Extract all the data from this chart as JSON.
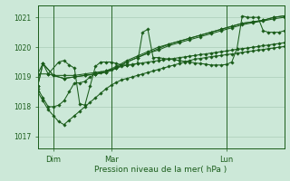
{
  "title": "",
  "xlabel": "Pression niveau de la mer( hPa )",
  "bg_color": "#cce8d8",
  "grid_color": "#aaccb8",
  "line_color": "#1a5c1a",
  "ylim": [
    1016.6,
    1021.4
  ],
  "xlim": [
    0,
    47
  ],
  "yticks": [
    1017,
    1018,
    1019,
    1020,
    1021
  ],
  "xtick_positions": [
    3,
    14,
    36
  ],
  "xtick_labels": [
    "Dim",
    "Mar",
    "Lun"
  ],
  "day_vlines": [
    3,
    14,
    36
  ],
  "series": [
    {
      "x": [
        0,
        1,
        2,
        3,
        5,
        7,
        9,
        11,
        13,
        15,
        17,
        19,
        21,
        23,
        25,
        27,
        29,
        31,
        33,
        35,
        37,
        39,
        41,
        43,
        45,
        47
      ],
      "y": [
        1019.1,
        1019.45,
        1019.1,
        1019.05,
        1019.05,
        1019.05,
        1019.1,
        1019.15,
        1019.2,
        1019.35,
        1019.55,
        1019.7,
        1019.85,
        1020.0,
        1020.1,
        1020.2,
        1020.3,
        1020.4,
        1020.5,
        1020.6,
        1020.7,
        1020.8,
        1020.85,
        1020.9,
        1021.0,
        1021.05
      ]
    },
    {
      "x": [
        0,
        1,
        3,
        5,
        7,
        9,
        11,
        13,
        15,
        17,
        19,
        21,
        23,
        25,
        27,
        29,
        31,
        33,
        35,
        37,
        39,
        41,
        43,
        45,
        47
      ],
      "y": [
        1018.7,
        1019.45,
        1019.05,
        1018.95,
        1019.0,
        1019.05,
        1019.1,
        1019.15,
        1019.3,
        1019.5,
        1019.65,
        1019.8,
        1019.95,
        1020.1,
        1020.2,
        1020.3,
        1020.4,
        1020.5,
        1020.6,
        1020.7,
        1020.8,
        1020.85,
        1020.9,
        1021.0,
        1021.05
      ]
    },
    {
      "x": [
        0,
        1,
        3,
        5,
        7,
        9,
        11,
        13,
        15,
        17,
        19,
        21,
        23,
        25,
        27,
        29,
        31,
        33,
        35,
        37,
        39,
        41,
        43,
        45,
        47
      ],
      "y": [
        1018.7,
        1019.45,
        1019.05,
        1018.95,
        1019.0,
        1019.05,
        1019.1,
        1019.15,
        1019.3,
        1019.5,
        1019.65,
        1019.8,
        1019.9,
        1020.05,
        1020.15,
        1020.25,
        1020.35,
        1020.45,
        1020.55,
        1020.65,
        1020.75,
        1020.82,
        1020.88,
        1020.95,
        1021.0
      ]
    },
    {
      "x": [
        0,
        1,
        2,
        3,
        4,
        5,
        6,
        7,
        8,
        9,
        10,
        11,
        12,
        13,
        14,
        15,
        16,
        17,
        18,
        19,
        20,
        21,
        22,
        23,
        24,
        25,
        26,
        27,
        28,
        29,
        30,
        31,
        32,
        33,
        34,
        35,
        36,
        37,
        38,
        39,
        40,
        41,
        42,
        43,
        44,
        45,
        46,
        47
      ],
      "y": [
        1018.6,
        1018.3,
        1018.0,
        1018.0,
        1018.05,
        1018.2,
        1018.5,
        1018.8,
        1018.8,
        1018.85,
        1019.0,
        1019.1,
        1019.15,
        1019.2,
        1019.25,
        1019.3,
        1019.35,
        1019.4,
        1019.42,
        1019.45,
        1019.47,
        1019.5,
        1019.52,
        1019.55,
        1019.57,
        1019.6,
        1019.62,
        1019.65,
        1019.67,
        1019.7,
        1019.72,
        1019.75,
        1019.77,
        1019.8,
        1019.82,
        1019.85,
        1019.87,
        1019.9,
        1019.93,
        1019.95,
        1019.97,
        1020.0,
        1020.02,
        1020.05,
        1020.07,
        1020.1,
        1020.12,
        1020.15
      ]
    },
    {
      "x": [
        0,
        2,
        4,
        5,
        6,
        7,
        8,
        9,
        10,
        11,
        12,
        13,
        14,
        15,
        16,
        17,
        18,
        19,
        20,
        21,
        22,
        23,
        24,
        25,
        26,
        27,
        28,
        29,
        30,
        31,
        32,
        33,
        34,
        35,
        36,
        37,
        38,
        39,
        40,
        41,
        42,
        43,
        44,
        45,
        46,
        47
      ],
      "y": [
        1019.1,
        1019.1,
        1019.5,
        1019.55,
        1019.4,
        1019.3,
        1018.1,
        1018.05,
        1018.7,
        1019.35,
        1019.5,
        1019.5,
        1019.5,
        1019.45,
        1019.4,
        1019.4,
        1019.4,
        1019.45,
        1020.5,
        1020.6,
        1019.65,
        1019.65,
        1019.62,
        1019.6,
        1019.58,
        1019.55,
        1019.52,
        1019.5,
        1019.47,
        1019.45,
        1019.43,
        1019.4,
        1019.4,
        1019.4,
        1019.42,
        1019.5,
        1019.95,
        1021.05,
        1021.0,
        1021.0,
        1021.0,
        1020.55,
        1020.5,
        1020.5,
        1020.5,
        1020.55
      ]
    },
    {
      "x": [
        0,
        1,
        2,
        3,
        4,
        5,
        6,
        7,
        8,
        9,
        10,
        11,
        12,
        13,
        14,
        15,
        16,
        17,
        18,
        19,
        20,
        21,
        22,
        23,
        24,
        25,
        26,
        27,
        28,
        29,
        30,
        31,
        32,
        33,
        34,
        35,
        36,
        37,
        38,
        39,
        40,
        41,
        42,
        43,
        44,
        45,
        46,
        47
      ],
      "y": [
        1018.5,
        1018.2,
        1017.9,
        1017.7,
        1017.5,
        1017.4,
        1017.55,
        1017.7,
        1017.85,
        1018.0,
        1018.15,
        1018.3,
        1018.45,
        1018.6,
        1018.72,
        1018.82,
        1018.9,
        1018.95,
        1019.0,
        1019.05,
        1019.1,
        1019.15,
        1019.2,
        1019.25,
        1019.3,
        1019.35,
        1019.4,
        1019.45,
        1019.5,
        1019.55,
        1019.6,
        1019.62,
        1019.65,
        1019.68,
        1019.7,
        1019.72,
        1019.75,
        1019.77,
        1019.8,
        1019.82,
        1019.85,
        1019.87,
        1019.9,
        1019.92,
        1019.95,
        1019.97,
        1020.0,
        1020.02
      ]
    }
  ]
}
